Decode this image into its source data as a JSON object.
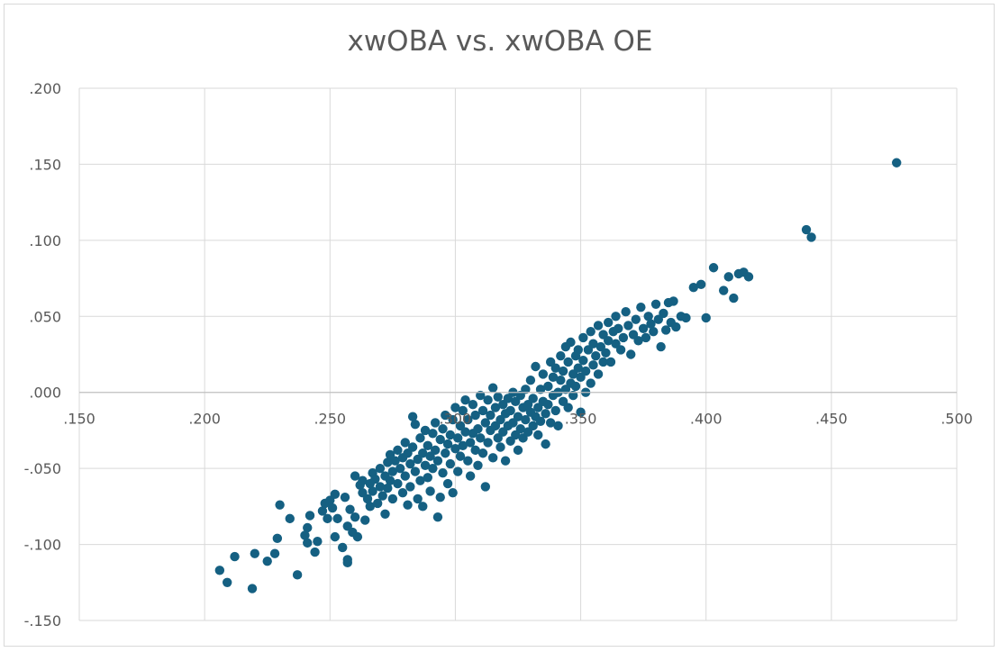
{
  "chart_data": {
    "type": "scatter",
    "title": "xwOBA vs. xwOBA OE",
    "xlabel": "",
    "ylabel": "",
    "xlim": [
      0.15,
      0.5
    ],
    "ylim": [
      -0.15,
      0.2
    ],
    "x_ticks": [
      ".150",
      ".200",
      ".250",
      ".300",
      ".350",
      ".400",
      ".450",
      ".500"
    ],
    "y_ticks": [
      ".200",
      ".150",
      ".100",
      ".050",
      ".000",
      "-.050",
      "-.100",
      "-.150"
    ],
    "grid": true,
    "legend": "none",
    "colors": {
      "marker": "#156082",
      "grid": "#d9d9d9",
      "axis": "#bfbfbf",
      "text": "#595959"
    },
    "series": [
      {
        "points": [
          [
            0.206,
            -0.117
          ],
          [
            0.209,
            -0.125
          ],
          [
            0.212,
            -0.108
          ],
          [
            0.219,
            -0.129
          ],
          [
            0.22,
            -0.106
          ],
          [
            0.225,
            -0.111
          ],
          [
            0.228,
            -0.106
          ],
          [
            0.229,
            -0.096
          ],
          [
            0.23,
            -0.074
          ],
          [
            0.234,
            -0.083
          ],
          [
            0.237,
            -0.12
          ],
          [
            0.24,
            -0.094
          ],
          [
            0.241,
            -0.099
          ],
          [
            0.241,
            -0.089
          ],
          [
            0.242,
            -0.081
          ],
          [
            0.244,
            -0.105
          ],
          [
            0.245,
            -0.098
          ],
          [
            0.247,
            -0.078
          ],
          [
            0.248,
            -0.073
          ],
          [
            0.249,
            -0.083
          ],
          [
            0.25,
            -0.071
          ],
          [
            0.251,
            -0.076
          ],
          [
            0.252,
            -0.067
          ],
          [
            0.252,
            -0.095
          ],
          [
            0.253,
            -0.083
          ],
          [
            0.255,
            -0.102
          ],
          [
            0.256,
            -0.069
          ],
          [
            0.257,
            -0.112
          ],
          [
            0.257,
            -0.11
          ],
          [
            0.257,
            -0.088
          ],
          [
            0.258,
            -0.077
          ],
          [
            0.259,
            -0.092
          ],
          [
            0.26,
            -0.055
          ],
          [
            0.26,
            -0.082
          ],
          [
            0.261,
            -0.095
          ],
          [
            0.262,
            -0.061
          ],
          [
            0.263,
            -0.058
          ],
          [
            0.263,
            -0.066
          ],
          [
            0.264,
            -0.084
          ],
          [
            0.265,
            -0.07
          ],
          [
            0.266,
            -0.06
          ],
          [
            0.266,
            -0.075
          ],
          [
            0.267,
            -0.053
          ],
          [
            0.267,
            -0.065
          ],
          [
            0.268,
            -0.057
          ],
          [
            0.269,
            -0.073
          ],
          [
            0.27,
            -0.062
          ],
          [
            0.27,
            -0.05
          ],
          [
            0.271,
            -0.068
          ],
          [
            0.272,
            -0.055
          ],
          [
            0.272,
            -0.08
          ],
          [
            0.273,
            -0.046
          ],
          [
            0.273,
            -0.063
          ],
          [
            0.274,
            -0.041
          ],
          [
            0.274,
            -0.058
          ],
          [
            0.275,
            -0.07
          ],
          [
            0.275,
            -0.052
          ],
          [
            0.276,
            -0.045
          ],
          [
            0.277,
            -0.06
          ],
          [
            0.277,
            -0.038
          ],
          [
            0.278,
            -0.05
          ],
          [
            0.279,
            -0.066
          ],
          [
            0.279,
            -0.043
          ],
          [
            0.28,
            -0.055
          ],
          [
            0.28,
            -0.033
          ],
          [
            0.281,
            -0.04
          ],
          [
            0.281,
            -0.074
          ],
          [
            0.282,
            -0.047
          ],
          [
            0.282,
            -0.062
          ],
          [
            0.283,
            -0.036
          ],
          [
            0.283,
            -0.016
          ],
          [
            0.284,
            -0.021
          ],
          [
            0.284,
            -0.052
          ],
          [
            0.285,
            -0.044
          ],
          [
            0.285,
            -0.07
          ],
          [
            0.286,
            -0.03
          ],
          [
            0.286,
            -0.058
          ],
          [
            0.287,
            -0.04
          ],
          [
            0.287,
            -0.075
          ],
          [
            0.288,
            -0.048
          ],
          [
            0.288,
            -0.025
          ],
          [
            0.289,
            -0.056
          ],
          [
            0.289,
            -0.035
          ],
          [
            0.29,
            -0.042
          ],
          [
            0.29,
            -0.065
          ],
          [
            0.291,
            -0.027
          ],
          [
            0.291,
            -0.05
          ],
          [
            0.292,
            -0.038
          ],
          [
            0.292,
            -0.02
          ],
          [
            0.293,
            -0.082
          ],
          [
            0.293,
            -0.045
          ],
          [
            0.294,
            -0.031
          ],
          [
            0.294,
            -0.069
          ],
          [
            0.295,
            -0.053
          ],
          [
            0.295,
            -0.024
          ],
          [
            0.296,
            -0.04
          ],
          [
            0.296,
            -0.015
          ],
          [
            0.297,
            -0.034
          ],
          [
            0.297,
            -0.06
          ],
          [
            0.298,
            -0.028
          ],
          [
            0.298,
            -0.047
          ],
          [
            0.299,
            -0.066
          ],
          [
            0.299,
            -0.018
          ],
          [
            0.3,
            -0.037
          ],
          [
            0.3,
            -0.01
          ],
          [
            0.301,
            -0.03
          ],
          [
            0.301,
            -0.052
          ],
          [
            0.302,
            -0.022
          ],
          [
            0.302,
            -0.042
          ],
          [
            0.303,
            -0.012
          ],
          [
            0.303,
            -0.035
          ],
          [
            0.304,
            -0.026
          ],
          [
            0.304,
            -0.005
          ],
          [
            0.305,
            -0.045
          ],
          [
            0.305,
            -0.018
          ],
          [
            0.306,
            -0.033
          ],
          [
            0.306,
            -0.055
          ],
          [
            0.307,
            -0.008
          ],
          [
            0.307,
            -0.027
          ],
          [
            0.308,
            -0.038
          ],
          [
            0.308,
            -0.015
          ],
          [
            0.309,
            -0.024
          ],
          [
            0.309,
            -0.048
          ],
          [
            0.31,
            -0.002
          ],
          [
            0.31,
            -0.03
          ],
          [
            0.311,
            -0.012
          ],
          [
            0.311,
            -0.04
          ],
          [
            0.312,
            -0.02
          ],
          [
            0.312,
            -0.062
          ],
          [
            0.313,
            -0.005
          ],
          [
            0.313,
            -0.033
          ],
          [
            0.314,
            -0.015
          ],
          [
            0.314,
            -0.025
          ],
          [
            0.315,
            0.003
          ],
          [
            0.315,
            -0.043
          ],
          [
            0.316,
            -0.01
          ],
          [
            0.316,
            -0.022
          ],
          [
            0.317,
            -0.03
          ],
          [
            0.317,
            -0.003
          ],
          [
            0.318,
            -0.018
          ],
          [
            0.318,
            -0.036
          ],
          [
            0.319,
            -0.008
          ],
          [
            0.319,
            -0.026
          ],
          [
            0.32,
            -0.014
          ],
          [
            0.32,
            -0.045
          ],
          [
            0.321,
            -0.004
          ],
          [
            0.321,
            -0.022
          ],
          [
            0.322,
            -0.032
          ],
          [
            0.322,
            -0.012
          ],
          [
            0.323,
            0.0
          ],
          [
            0.323,
            -0.02
          ],
          [
            0.324,
            -0.028
          ],
          [
            0.324,
            -0.006
          ],
          [
            0.325,
            -0.016
          ],
          [
            0.325,
            -0.038
          ],
          [
            0.326,
            -0.002
          ],
          [
            0.326,
            -0.024
          ],
          [
            0.327,
            -0.01
          ],
          [
            0.327,
            -0.03
          ],
          [
            0.328,
            0.002
          ],
          [
            0.328,
            -0.018
          ],
          [
            0.329,
            -0.008
          ],
          [
            0.329,
            -0.026
          ],
          [
            0.33,
            -0.013
          ],
          [
            0.33,
            0.008
          ],
          [
            0.331,
            -0.022
          ],
          [
            0.331,
            -0.004
          ],
          [
            0.332,
            -0.016
          ],
          [
            0.332,
            0.017
          ],
          [
            0.333,
            -0.01
          ],
          [
            0.333,
            -0.028
          ],
          [
            0.334,
            0.002
          ],
          [
            0.334,
            -0.019
          ],
          [
            0.335,
            -0.006
          ],
          [
            0.335,
            0.012
          ],
          [
            0.336,
            -0.014
          ],
          [
            0.336,
            -0.034
          ],
          [
            0.337,
            0.004
          ],
          [
            0.337,
            -0.008
          ],
          [
            0.338,
            0.02
          ],
          [
            0.338,
            -0.02
          ],
          [
            0.339,
            -0.002
          ],
          [
            0.339,
            0.01
          ],
          [
            0.34,
            -0.012
          ],
          [
            0.34,
            0.016
          ],
          [
            0.341,
            0.0
          ],
          [
            0.341,
            -0.022
          ],
          [
            0.342,
            0.008
          ],
          [
            0.342,
            0.024
          ],
          [
            0.343,
            -0.006
          ],
          [
            0.343,
            0.014
          ],
          [
            0.344,
            0.002
          ],
          [
            0.344,
            0.03
          ],
          [
            0.345,
            -0.01
          ],
          [
            0.345,
            0.02
          ],
          [
            0.346,
            0.006
          ],
          [
            0.346,
            0.033
          ],
          [
            0.347,
            0.012
          ],
          [
            0.347,
            -0.002
          ],
          [
            0.348,
            0.024
          ],
          [
            0.348,
            0.004
          ],
          [
            0.349,
            0.016
          ],
          [
            0.349,
            0.028
          ],
          [
            0.35,
            -0.013
          ],
          [
            0.35,
            0.01
          ],
          [
            0.351,
            0.021
          ],
          [
            0.351,
            0.036
          ],
          [
            0.352,
            0.0
          ],
          [
            0.352,
            0.014
          ],
          [
            0.353,
            0.028
          ],
          [
            0.354,
            0.006
          ],
          [
            0.354,
            0.04
          ],
          [
            0.355,
            0.018
          ],
          [
            0.355,
            0.032
          ],
          [
            0.356,
            0.024
          ],
          [
            0.357,
            0.012
          ],
          [
            0.357,
            0.044
          ],
          [
            0.358,
            0.03
          ],
          [
            0.359,
            0.02
          ],
          [
            0.359,
            0.038
          ],
          [
            0.36,
            0.026
          ],
          [
            0.361,
            0.046
          ],
          [
            0.361,
            0.034
          ],
          [
            0.362,
            0.02
          ],
          [
            0.363,
            0.04
          ],
          [
            0.364,
            0.032
          ],
          [
            0.364,
            0.05
          ],
          [
            0.365,
            0.042
          ],
          [
            0.366,
            0.028
          ],
          [
            0.367,
            0.036
          ],
          [
            0.368,
            0.053
          ],
          [
            0.369,
            0.044
          ],
          [
            0.37,
            0.025
          ],
          [
            0.371,
            0.038
          ],
          [
            0.372,
            0.048
          ],
          [
            0.373,
            0.034
          ],
          [
            0.374,
            0.056
          ],
          [
            0.375,
            0.042
          ],
          [
            0.376,
            0.036
          ],
          [
            0.377,
            0.05
          ],
          [
            0.378,
            0.045
          ],
          [
            0.379,
            0.04
          ],
          [
            0.38,
            0.058
          ],
          [
            0.381,
            0.048
          ],
          [
            0.382,
            0.03
          ],
          [
            0.383,
            0.052
          ],
          [
            0.384,
            0.041
          ],
          [
            0.385,
            0.059
          ],
          [
            0.386,
            0.046
          ],
          [
            0.387,
            0.06
          ],
          [
            0.388,
            0.043
          ],
          [
            0.39,
            0.05
          ],
          [
            0.392,
            0.049
          ],
          [
            0.395,
            0.069
          ],
          [
            0.398,
            0.071
          ],
          [
            0.4,
            0.049
          ],
          [
            0.403,
            0.082
          ],
          [
            0.407,
            0.067
          ],
          [
            0.409,
            0.076
          ],
          [
            0.411,
            0.062
          ],
          [
            0.413,
            0.078
          ],
          [
            0.415,
            0.079
          ],
          [
            0.417,
            0.076
          ],
          [
            0.44,
            0.107
          ],
          [
            0.442,
            0.102
          ],
          [
            0.476,
            0.151
          ]
        ]
      }
    ]
  }
}
